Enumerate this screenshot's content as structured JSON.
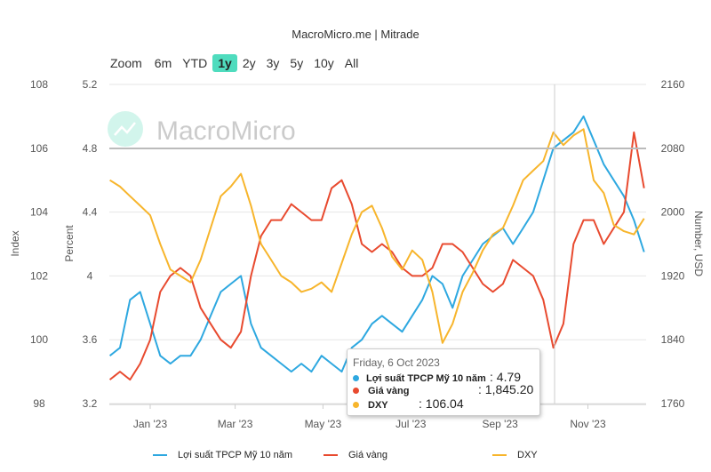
{
  "header": {
    "title": "MacroMicro.me | Mitrade"
  },
  "zoom": {
    "label": "Zoom",
    "options": [
      "6m",
      "YTD",
      "1y",
      "2y",
      "3y",
      "5y",
      "10y",
      "All"
    ],
    "active": "1y"
  },
  "watermark": "MacroMicro",
  "tooltip": {
    "date": "Friday, 6 Oct 2023",
    "rows": [
      {
        "name": "Lợi suất TPCP Mỹ 10 năm",
        "value": ": 4.79",
        "color": "#2ea8e0"
      },
      {
        "name": "Giá vàng",
        "value": ": 1,845.20",
        "color": "#e84a2f"
      },
      {
        "name": "DXY",
        "value": ": 106.04",
        "color": "#f7b52c"
      }
    ]
  },
  "chart_data": {
    "type": "line",
    "x_unit": "days since 1 Jan 2023 (weekly)",
    "x_start": -28,
    "x_step": 7,
    "x_ticks": [
      {
        "label": "Jan '23",
        "day": 0
      },
      {
        "label": "Mar '23",
        "day": 59
      },
      {
        "label": "May '23",
        "day": 120
      },
      {
        "label": "Jul '23",
        "day": 181
      },
      {
        "label": "Sep '23",
        "day": 243
      },
      {
        "label": "Nov '23",
        "day": 304
      }
    ],
    "axes": {
      "index": {
        "label": "Index",
        "range": [
          98,
          108
        ],
        "ticks": [
          "98",
          "100",
          "102",
          "104",
          "106",
          "108"
        ]
      },
      "percent": {
        "label": "Percent",
        "range": [
          3.2,
          5.2
        ],
        "ticks": [
          "3.2",
          "3.6",
          "4",
          "4.4",
          "4.8",
          "5.2"
        ]
      },
      "usd": {
        "label": "Number, USD",
        "range": [
          1760,
          2160
        ],
        "ticks": [
          "1760",
          "1840",
          "1920",
          "2000",
          "2080",
          "2160"
        ]
      }
    },
    "series": [
      {
        "name": "Lợi suất TPCP Mỹ 10 năm",
        "axis": "percent",
        "color": "#2ea8e0",
        "values": [
          3.5,
          3.55,
          3.85,
          3.9,
          3.7,
          3.5,
          3.45,
          3.5,
          3.5,
          3.6,
          3.75,
          3.9,
          3.95,
          4.0,
          3.7,
          3.55,
          3.5,
          3.45,
          3.4,
          3.45,
          3.4,
          3.5,
          3.45,
          3.4,
          3.55,
          3.6,
          3.7,
          3.75,
          3.7,
          3.65,
          3.75,
          3.85,
          4.0,
          3.95,
          3.8,
          4.0,
          4.1,
          4.2,
          4.25,
          4.3,
          4.2,
          4.3,
          4.4,
          4.6,
          4.8,
          4.85,
          4.9,
          5.0,
          4.85,
          4.7,
          4.6,
          4.5,
          4.35,
          4.15
        ]
      },
      {
        "name": "Giá vàng",
        "axis": "usd",
        "color": "#e84a2f",
        "values": [
          1790,
          1800,
          1790,
          1810,
          1840,
          1900,
          1920,
          1930,
          1920,
          1880,
          1860,
          1840,
          1830,
          1850,
          1920,
          1970,
          1990,
          1990,
          2010,
          2000,
          1990,
          1990,
          2030,
          2040,
          2010,
          1960,
          1950,
          1960,
          1950,
          1930,
          1920,
          1920,
          1930,
          1960,
          1960,
          1950,
          1930,
          1910,
          1900,
          1910,
          1940,
          1930,
          1920,
          1890,
          1830,
          1860,
          1960,
          1990,
          1990,
          1960,
          1980,
          2000,
          2100,
          2030
        ]
      },
      {
        "name": "DXY",
        "axis": "index",
        "color": "#f7b52c",
        "values": [
          105.0,
          104.8,
          104.5,
          104.2,
          103.9,
          103.0,
          102.2,
          102.0,
          101.8,
          102.5,
          103.5,
          104.5,
          104.8,
          105.2,
          104.2,
          103.0,
          102.5,
          102.0,
          101.8,
          101.5,
          101.6,
          101.8,
          101.5,
          102.4,
          103.3,
          104.0,
          104.2,
          103.5,
          102.6,
          102.2,
          102.8,
          102.5,
          101.5,
          99.9,
          100.5,
          101.5,
          102.1,
          102.8,
          103.3,
          103.5,
          104.2,
          105.0,
          105.3,
          105.6,
          106.5,
          106.1,
          106.4,
          106.6,
          105.0,
          104.6,
          103.6,
          103.4,
          103.3,
          103.8
        ]
      }
    ],
    "legend": "bottom"
  }
}
